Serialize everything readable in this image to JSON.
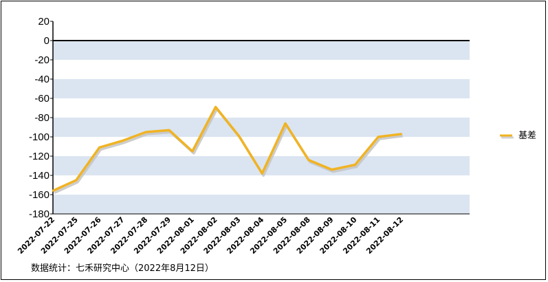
{
  "chart_data": {
    "type": "line",
    "x": [
      "2022-07-22",
      "2022-07-25",
      "2022-07-26",
      "2022-07-27",
      "2022-07-28",
      "2022-07-29",
      "2022-08-01",
      "2022-08-02",
      "2022-08-03",
      "2022-08-04",
      "2022-08-05",
      "2022-08-08",
      "2022-08-09",
      "2022-08-10",
      "2022-08-11",
      "2022-08-12"
    ],
    "series": [
      {
        "name": "基差",
        "values": [
          -156,
          -145,
          -111,
          -104,
          -95,
          -93,
          -115,
          -69,
          -99,
          -138,
          -86,
          -124,
          -134,
          -129,
          -100,
          -97
        ],
        "color": "#f0b323"
      }
    ],
    "ylim": [
      -180,
      20
    ],
    "yticks": [
      20,
      0,
      -20,
      -40,
      -60,
      -80,
      -100,
      -120,
      -140,
      -160,
      -180
    ],
    "grid": "alternating horizontal bands",
    "band_color": "#dbe5f1",
    "legend_position": "right"
  },
  "footer": {
    "source": "数据统计：七禾研究中心（2022年8月12日）"
  }
}
